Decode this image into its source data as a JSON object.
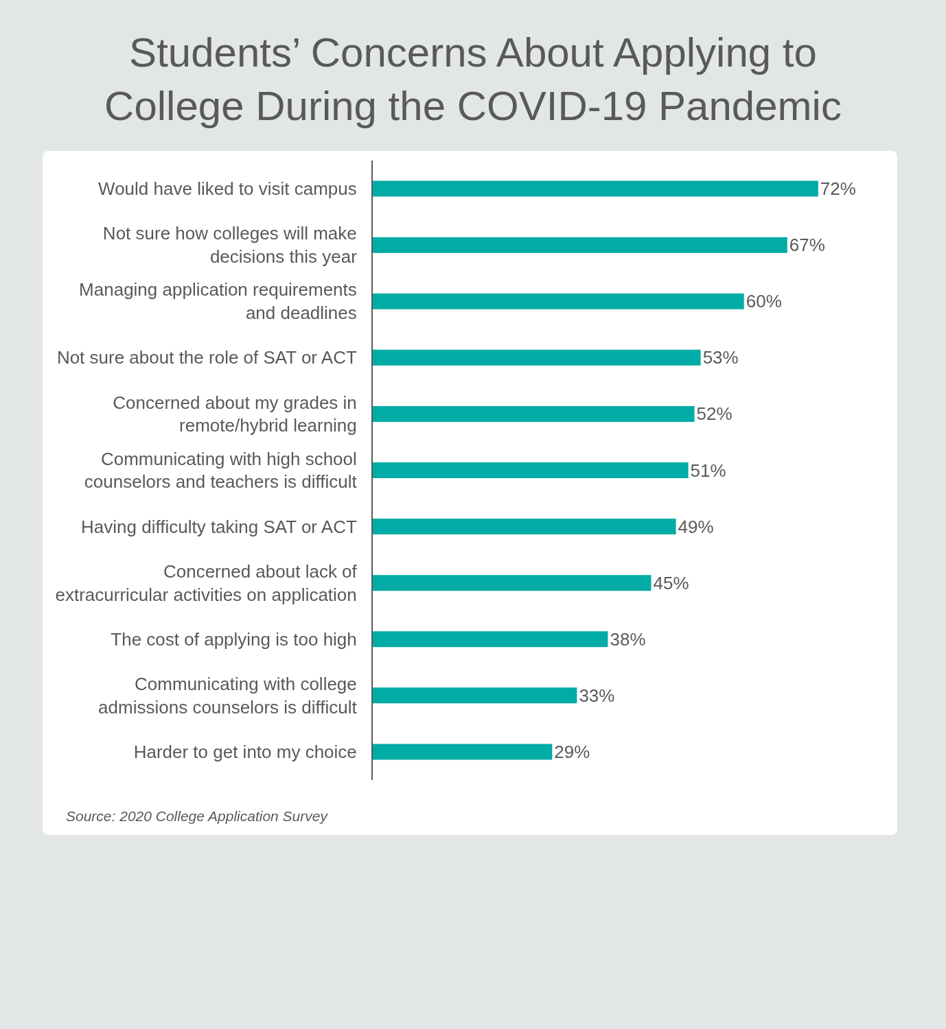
{
  "chart_data": {
    "type": "bar",
    "orientation": "horizontal",
    "title": "Students’ Concerns About Applying to College During the COVID-19 Pandemic",
    "categories": [
      "Would have liked to visit campus",
      "Not sure how colleges will make decisions this year",
      "Managing application requirements and deadlines",
      "Not sure about the role of SAT or ACT",
      "Concerned about my grades in remote/hybrid learning",
      "Communicating with high school counselors and teachers is difficult",
      "Having difficulty taking SAT or ACT",
      "Concerned about lack of extracurricular activities on application",
      "The cost of applying is too high",
      "Communicating with college admissions counselors is difficult",
      "Harder to get into my choice"
    ],
    "values": [
      72,
      67,
      60,
      53,
      52,
      51,
      49,
      45,
      38,
      33,
      29
    ],
    "value_labels": [
      "72%",
      "67%",
      "60%",
      "53%",
      "52%",
      "51%",
      "49%",
      "45%",
      "38%",
      "33%",
      "29%"
    ],
    "color": "#00aca5",
    "tick_labels": "y",
    "annotations": [
      "Source: 2020 College Application Survey"
    ]
  }
}
